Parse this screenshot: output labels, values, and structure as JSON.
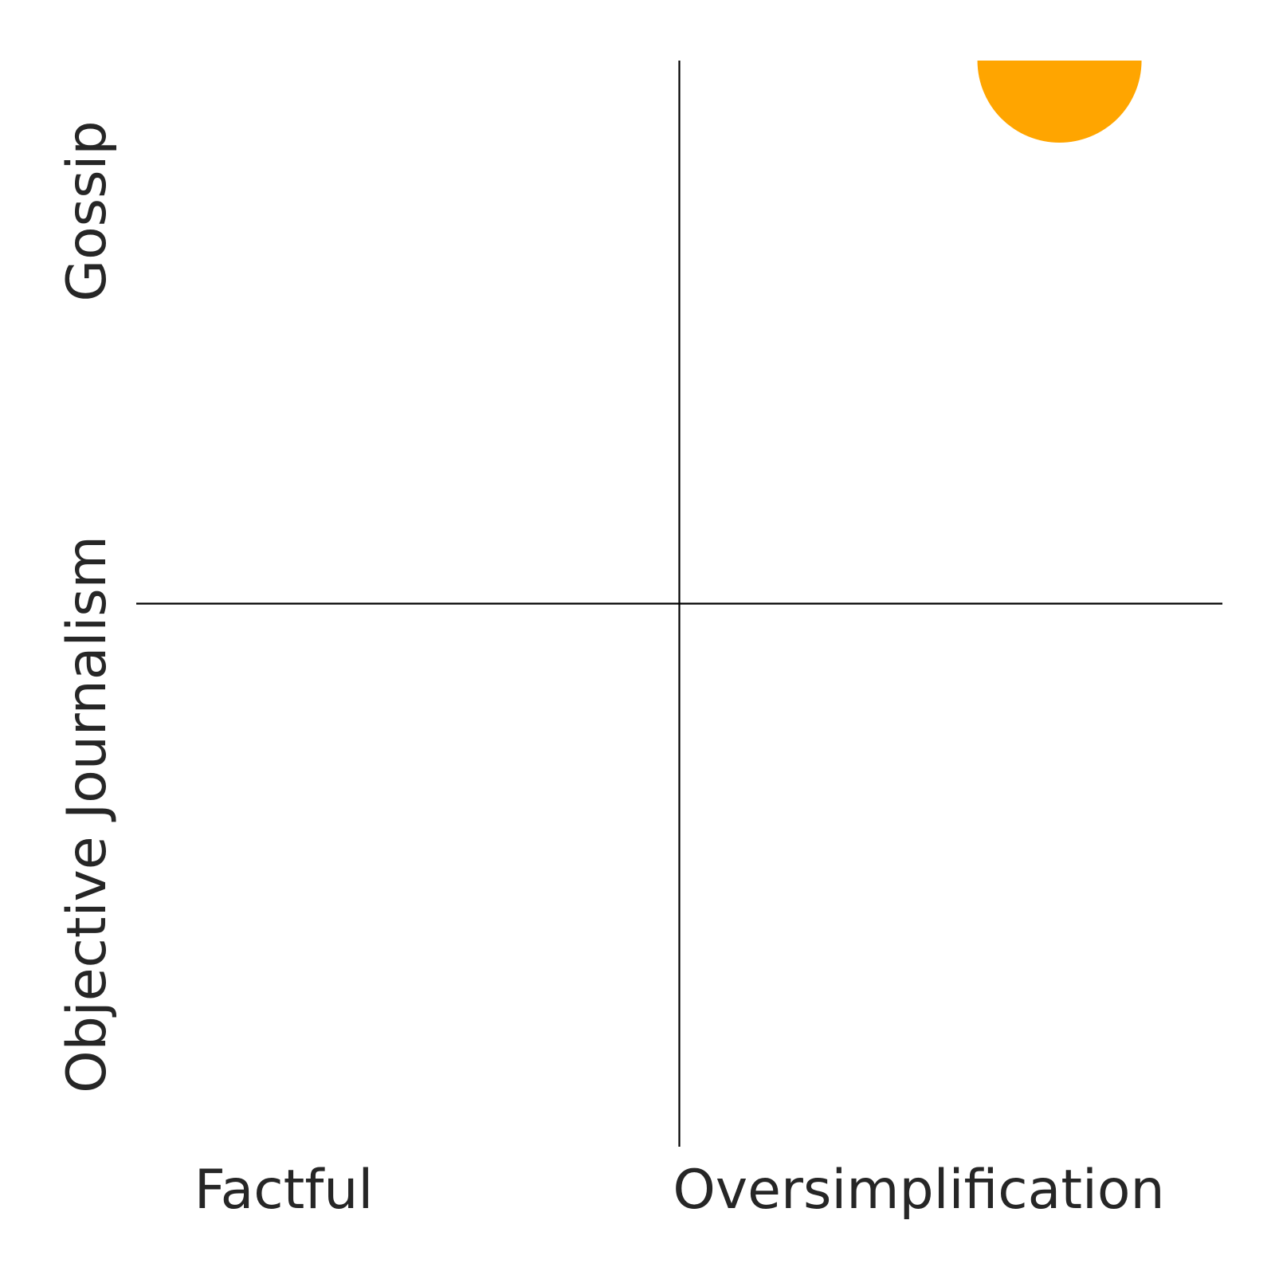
{
  "chart_data": {
    "type": "scatter",
    "title": "",
    "quadrant_labels": {
      "x_low": "Factful",
      "x_high": "Oversimplification",
      "y_low": "Objective Journalism",
      "y_high": "Gossip"
    },
    "xlim": [
      0,
      1
    ],
    "ylim": [
      0,
      1
    ],
    "divider_x": 0.5,
    "divider_y": 0.5,
    "grid": false,
    "points": [
      {
        "x": 0.85,
        "y": 1.0,
        "color": "#FFA500"
      }
    ]
  }
}
